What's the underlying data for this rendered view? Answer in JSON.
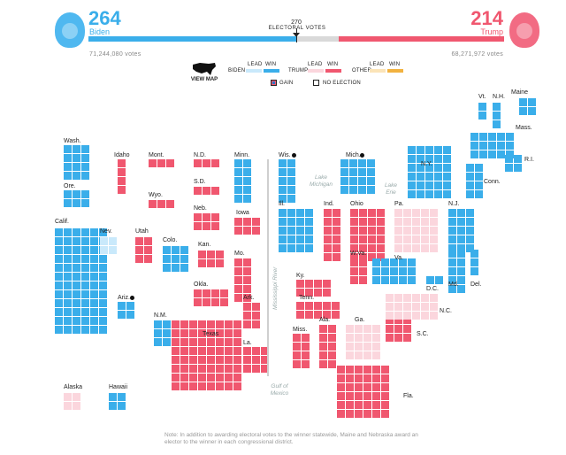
{
  "biden": {
    "electoral_votes": "264",
    "name": "Biden",
    "popular_votes": "71,244,080 votes",
    "color": "#3aaeea"
  },
  "trump": {
    "electoral_votes": "214",
    "name": "Trump",
    "popular_votes": "68,271,972 votes",
    "color": "#f0576f"
  },
  "threshold": {
    "number": "270",
    "label": "ELECTORAL VOTES"
  },
  "view_map": "VIEW MAP",
  "legend": {
    "lead": "LEAD",
    "win": "WIN",
    "biden": "BIDEN",
    "trump": "TRUMP",
    "other": "OTHER",
    "gain": "GAIN",
    "no_election": "NO ELECTION"
  },
  "colors": {
    "biden_win": "#3aaeea",
    "biden_lead": "#c9e9fb",
    "trump_win": "#f0576f",
    "trump_lead": "#fbd6dd",
    "other_win": "#f2b23f",
    "other_lead": "#fbe4b8"
  },
  "states": {
    "wash": "Wash.",
    "ore": "Ore.",
    "calif": "Calif.",
    "idaho": "Idaho",
    "nev": "Nev.",
    "utah": "Utah",
    "ariz": "Ariz.",
    "mont": "Mont.",
    "wyo": "Wyo.",
    "colo": "Colo.",
    "nm": "N.M.",
    "nd": "N.D.",
    "sd": "S.D.",
    "neb": "Neb.",
    "kan": "Kan.",
    "okla": "Okla.",
    "texas": "Texas",
    "minn": "Minn.",
    "iowa": "Iowa",
    "mo": "Mo.",
    "ark": "Ark.",
    "la": "La.",
    "wis": "Wis.",
    "ill": "Ill.",
    "mich": "Mich.",
    "ind": "Ind.",
    "ohio": "Ohio",
    "ky": "Ky.",
    "tenn": "Tenn.",
    "miss": "Miss.",
    "ala": "Ala.",
    "ga": "Ga.",
    "fla": "Fla.",
    "sc": "S.C.",
    "nc": "N.C.",
    "va": "Va.",
    "wva": "W.Va.",
    "pa": "Pa.",
    "ny": "N.Y.",
    "nj": "N.J.",
    "md": "Md.",
    "del": "Del.",
    "dc": "D.C.",
    "conn": "Conn.",
    "ri": "R.I.",
    "mass": "Mass.",
    "vt": "Vt.",
    "nh": "N.H.",
    "maine": "Maine",
    "alaska": "Alaska",
    "hawaii": "Hawaii"
  },
  "regions": {
    "lake_michigan": [
      "Lake",
      "Michigan"
    ],
    "lake_erie": [
      "Lake",
      "Erie"
    ],
    "gulf_of_mexico": [
      "Gulf of",
      "Mexico"
    ],
    "mississippi_river": "Mississippi River"
  },
  "note": "Note: In addition to awarding electoral votes to the winner statewide, Maine and Nebraska award an elector to the winner in each congressional district."
}
